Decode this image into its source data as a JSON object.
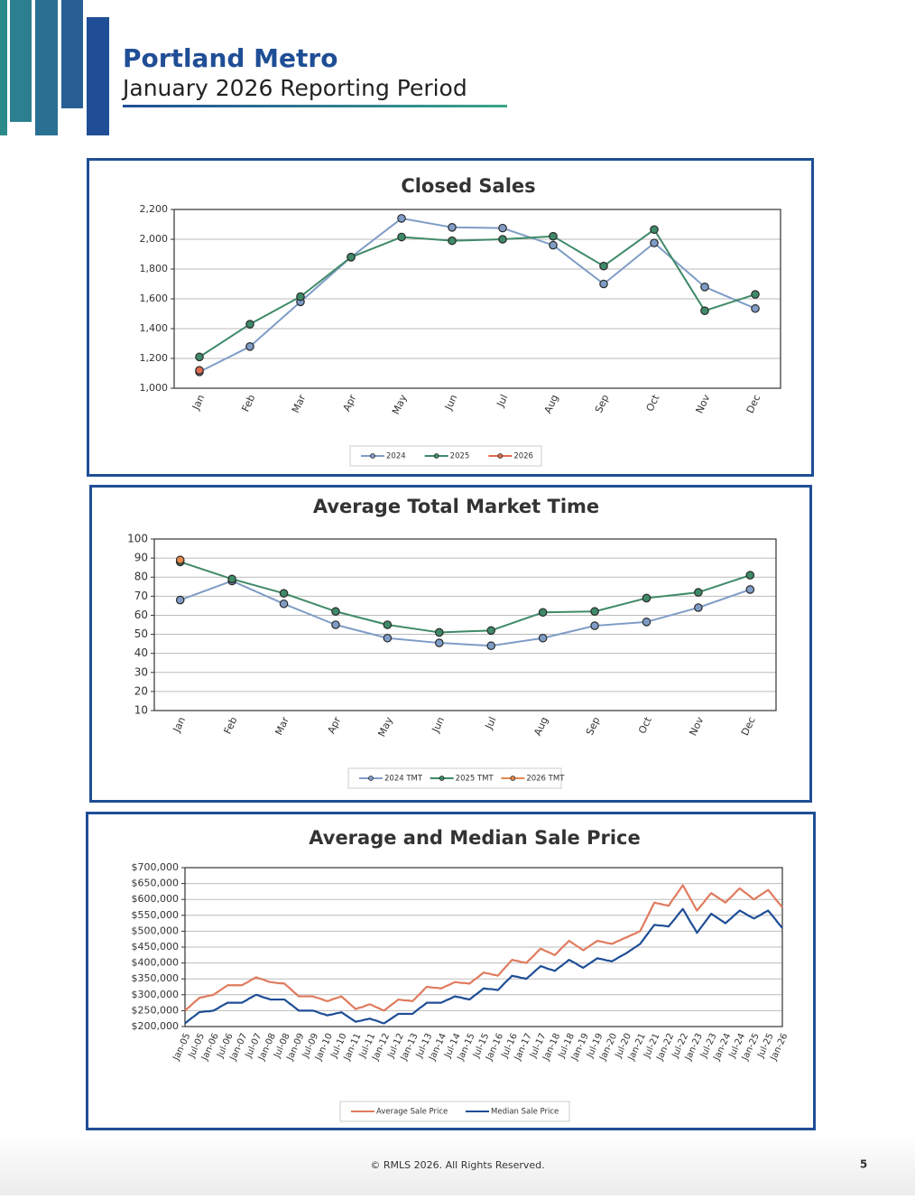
{
  "header": {
    "title": "Portland Metro",
    "subtitle": "January 2026 Reporting Period"
  },
  "footer": {
    "copyright": "© RMLS 2026. All Rights Reserved.",
    "page": "5"
  },
  "chart_data": [
    {
      "type": "line",
      "title": "Closed Sales",
      "markers": true,
      "grid": true,
      "legend": "bottom",
      "categories": [
        "Jan",
        "Feb",
        "Mar",
        "Apr",
        "May",
        "Jun",
        "Jul",
        "Aug",
        "Sep",
        "Oct",
        "Nov",
        "Dec"
      ],
      "series": [
        {
          "name": "2024",
          "color": "#7f9cc6",
          "values": [
            1110,
            1280,
            1580,
            1880,
            2140,
            2080,
            2075,
            1960,
            1700,
            1975,
            1680,
            1535
          ]
        },
        {
          "name": "2025",
          "color": "#3f8a68",
          "values": [
            1210,
            1430,
            1615,
            1880,
            2015,
            1990,
            2000,
            2020,
            1820,
            2065,
            1520,
            1630
          ]
        },
        {
          "name": "2026",
          "color": "#e06b4f",
          "values": [
            1120,
            null,
            null,
            null,
            null,
            null,
            null,
            null,
            null,
            null,
            null,
            null
          ]
        }
      ],
      "ylim": [
        1000,
        2200
      ],
      "yticks": [
        {
          "value": 1000,
          "label": "1,000"
        },
        {
          "value": 1200,
          "label": "1,200"
        },
        {
          "value": 1400,
          "label": "1,400"
        },
        {
          "value": 1600,
          "label": "1,600"
        },
        {
          "value": 1800,
          "label": "1,800"
        },
        {
          "value": 2000,
          "label": "2,000"
        },
        {
          "value": 2200,
          "label": "2,200"
        }
      ]
    },
    {
      "type": "line",
      "title": "Average Total Market Time",
      "markers": true,
      "grid": true,
      "legend": "bottom",
      "categories": [
        "Jan",
        "Feb",
        "Mar",
        "Apr",
        "May",
        "Jun",
        "Jul",
        "Aug",
        "Sep",
        "Oct",
        "Nov",
        "Dec"
      ],
      "series": [
        {
          "name": "2024 TMT",
          "color": "#7f9cc6",
          "values": [
            68,
            78,
            66,
            55,
            48,
            45.5,
            44,
            48,
            54.5,
            56.5,
            64,
            73.5
          ]
        },
        {
          "name": "2025 TMT",
          "color": "#3f8a68",
          "values": [
            88,
            79,
            71.5,
            62,
            55,
            51,
            52,
            61.5,
            62,
            69,
            72,
            81
          ]
        },
        {
          "name": "2026 TMT",
          "color": "#e38a4c",
          "values": [
            89,
            null,
            null,
            null,
            null,
            null,
            null,
            null,
            null,
            null,
            null,
            null
          ]
        }
      ],
      "ylim": [
        10,
        100
      ],
      "yticks": [
        10,
        20,
        30,
        40,
        50,
        60,
        70,
        80,
        90,
        100
      ]
    },
    {
      "type": "line",
      "title": "Average and Median Sale Price",
      "markers": false,
      "grid": true,
      "legend": "bottom",
      "categories": [
        "Jan-05",
        null,
        null,
        null,
        null,
        null,
        "Jul-05",
        null,
        null,
        null,
        null,
        null,
        "Jan-06",
        null,
        null,
        null,
        null,
        null,
        "Jul-06",
        null,
        null,
        null,
        null,
        null,
        "Jan-07",
        null,
        null,
        null,
        null,
        null,
        "Jul-07",
        null,
        null,
        null,
        null,
        null,
        "Jan-08",
        null,
        null,
        null,
        null,
        null,
        "Jul-08",
        null,
        null,
        null,
        null,
        null,
        "Jan-09",
        null,
        null,
        null,
        null,
        null,
        "Jul-09",
        null,
        null,
        null,
        null,
        null,
        "Jan-10",
        null,
        null,
        null,
        null,
        null,
        "Jul-10",
        null,
        null,
        null,
        null,
        null,
        "Jan-11",
        null,
        null,
        null,
        null,
        null,
        "Jul-11",
        null,
        null,
        null,
        null,
        null,
        "Jan-12",
        null,
        null,
        null,
        null,
        null,
        "Jul-12",
        null,
        null,
        null,
        null,
        null,
        "Jan-13",
        null,
        null,
        null,
        null,
        null,
        "Jul-13",
        null,
        null,
        null,
        null,
        null,
        "Jan-14",
        null,
        null,
        null,
        null,
        null,
        "Jul-14",
        null,
        null,
        null,
        null,
        null,
        "Jan-15",
        null,
        null,
        null,
        null,
        null,
        "Jul-15",
        null,
        null,
        null,
        null,
        null,
        "Jan-16",
        null,
        null,
        null,
        null,
        null,
        "Jul-16",
        null,
        null,
        null,
        null,
        null,
        "Jan-17",
        null,
        null,
        null,
        null,
        null,
        "Jul-17",
        null,
        null,
        null,
        null,
        null,
        "Jan-18",
        null,
        null,
        null,
        null,
        null,
        "Jul-18",
        null,
        null,
        null,
        null,
        null,
        "Jan-19",
        null,
        null,
        null,
        null,
        null,
        "Jul-19",
        null,
        null,
        null,
        null,
        null,
        "Jan-20",
        null,
        null,
        null,
        null,
        null,
        "Jul-20",
        null,
        null,
        null,
        null,
        null,
        "Jan-21",
        null,
        null,
        null,
        null,
        null,
        "Jul-21",
        null,
        null,
        null,
        null,
        null,
        "Jan-22",
        null,
        null,
        null,
        null,
        null,
        "Jul-22",
        null,
        null,
        null,
        null,
        null,
        "Jan-23",
        null,
        null,
        null,
        null,
        null,
        "Jul-23",
        null,
        null,
        null,
        null,
        null,
        "Jan-24",
        null,
        null,
        null,
        null,
        null,
        "Jul-24",
        null,
        null,
        null,
        null,
        null,
        "Jan-25",
        null,
        null,
        null,
        null,
        null,
        "Jul-25",
        null,
        null,
        null,
        null,
        null,
        "Jan-26"
      ],
      "series": [
        {
          "name": "Average Sale Price",
          "color": "#e07b5f",
          "values": [
            250000,
            257000,
            263000,
            270000,
            277000,
            283000,
            290000,
            292000,
            293000,
            295000,
            297000,
            298000,
            300000,
            305000,
            310000,
            315000,
            320000,
            325000,
            330000,
            330000,
            330000,
            330000,
            330000,
            330000,
            330000,
            334000,
            338000,
            342000,
            347000,
            351000,
            355000,
            352000,
            350000,
            348000,
            345000,
            342000,
            340000,
            339000,
            338000,
            337000,
            336000,
            336000,
            335000,
            328000,
            322000,
            315000,
            308000,
            302000,
            295000,
            295000,
            295000,
            295000,
            295000,
            295000,
            295000,
            292000,
            290000,
            288000,
            285000,
            282000,
            280000,
            282000,
            285000,
            288000,
            290000,
            292000,
            295000,
            288000,
            282000,
            275000,
            268000,
            262000,
            255000,
            258000,
            260000,
            262000,
            265000,
            268000,
            270000,
            267000,
            263000,
            260000,
            257000,
            253000,
            250000,
            256000,
            262000,
            268000,
            273000,
            279000,
            285000,
            284000,
            283000,
            282000,
            282000,
            281000,
            280000,
            287000,
            295000,
            302000,
            310000,
            318000,
            325000,
            324000,
            323000,
            322000,
            322000,
            321000,
            320000,
            323000,
            327000,
            330000,
            333000,
            337000,
            340000,
            339000,
            338000,
            337000,
            337000,
            336000,
            335000,
            341000,
            347000,
            352000,
            358000,
            364000,
            370000,
            368000,
            367000,
            365000,
            363000,
            362000,
            360000,
            368000,
            377000,
            385000,
            393000,
            402000,
            410000,
            408000,
            407000,
            405000,
            403000,
            402000,
            400000,
            408000,
            415000,
            422000,
            430000,
            438000,
            445000,
            442000,
            438000,
            435000,
            432000,
            428000,
            425000,
            432000,
            440000,
            448000,
            455000,
            462000,
            470000,
            465000,
            460000,
            455000,
            450000,
            445000,
            440000,
            445000,
            450000,
            455000,
            460000,
            465000,
            470000,
            468000,
            467000,
            465000,
            463000,
            462000,
            460000,
            463000,
            467000,
            470000,
            473000,
            477000,
            480000,
            483000,
            487000,
            490000,
            493000,
            497000,
            500000,
            515000,
            530000,
            545000,
            560000,
            575000,
            590000,
            588000,
            587000,
            585000,
            583000,
            582000,
            580000,
            591000,
            602000,
            612000,
            623000,
            634000,
            645000,
            632000,
            618000,
            605000,
            592000,
            578000,
            565000,
            574000,
            583000,
            592000,
            602000,
            611000,
            620000,
            615000,
            610000,
            605000,
            600000,
            595000,
            590000,
            598000,
            605000,
            612000,
            620000,
            628000,
            635000,
            629000,
            623000,
            618000,
            612000,
            606000,
            600000,
            605000,
            610000,
            615000,
            620000,
            625000,
            630000,
            621000,
            612000,
            602000,
            593000,
            584000,
            575000
          ]
        },
        {
          "name": "Median Sale Price",
          "color": "#1f4e96",
          "values": [
            210000,
            216000,
            222000,
            228000,
            233000,
            239000,
            245000,
            246000,
            247000,
            248000,
            248000,
            249000,
            250000,
            254000,
            258000,
            263000,
            267000,
            271000,
            275000,
            275000,
            275000,
            275000,
            275000,
            275000,
            275000,
            279000,
            283000,
            288000,
            292000,
            296000,
            300000,
            298000,
            295000,
            292000,
            290000,
            288000,
            285000,
            285000,
            285000,
            285000,
            285000,
            285000,
            285000,
            279000,
            273000,
            268000,
            262000,
            256000,
            250000,
            250000,
            250000,
            250000,
            250000,
            250000,
            250000,
            248000,
            245000,
            242000,
            240000,
            238000,
            235000,
            237000,
            238000,
            240000,
            242000,
            243000,
            245000,
            240000,
            235000,
            230000,
            225000,
            220000,
            215000,
            217000,
            218000,
            220000,
            222000,
            223000,
            225000,
            222000,
            220000,
            218000,
            215000,
            212000,
            210000,
            215000,
            220000,
            225000,
            230000,
            235000,
            240000,
            240000,
            240000,
            240000,
            240000,
            240000,
            240000,
            246000,
            252000,
            258000,
            263000,
            269000,
            275000,
            275000,
            275000,
            275000,
            275000,
            275000,
            275000,
            278000,
            282000,
            285000,
            288000,
            292000,
            295000,
            293000,
            292000,
            290000,
            288000,
            287000,
            285000,
            291000,
            297000,
            302000,
            308000,
            314000,
            320000,
            319000,
            318000,
            318000,
            317000,
            316000,
            315000,
            322000,
            330000,
            338000,
            345000,
            352000,
            360000,
            358000,
            357000,
            355000,
            353000,
            352000,
            350000,
            357000,
            363000,
            370000,
            377000,
            383000,
            390000,
            388000,
            385000,
            382000,
            380000,
            378000,
            375000,
            381000,
            387000,
            392000,
            398000,
            404000,
            410000,
            406000,
            402000,
            398000,
            393000,
            389000,
            385000,
            390000,
            395000,
            400000,
            405000,
            410000,
            415000,
            413000,
            412000,
            410000,
            408000,
            407000,
            405000,
            409000,
            413000,
            418000,
            422000,
            426000,
            430000,
            435000,
            440000,
            445000,
            450000,
            455000,
            460000,
            470000,
            480000,
            490000,
            500000,
            510000,
            520000,
            519000,
            518000,
            518000,
            517000,
            516000,
            515000,
            524000,
            533000,
            542000,
            552000,
            561000,
            570000,
            558000,
            545000,
            532000,
            520000,
            508000,
            495000,
            505000,
            515000,
            525000,
            535000,
            545000,
            555000,
            550000,
            545000,
            540000,
            535000,
            530000,
            525000,
            532000,
            538000,
            545000,
            552000,
            558000,
            565000,
            561000,
            557000,
            552000,
            548000,
            544000,
            540000,
            544000,
            548000,
            552000,
            557000,
            561000,
            565000,
            556000,
            547000,
            538000,
            528000,
            519000,
            510000
          ]
        }
      ],
      "ylim": [
        200000,
        700000
      ],
      "yticks": [
        {
          "value": 200000,
          "label": "$200,000"
        },
        {
          "value": 250000,
          "label": "$250,000"
        },
        {
          "value": 300000,
          "label": "$300,000"
        },
        {
          "value": 350000,
          "label": "$350,000"
        },
        {
          "value": 400000,
          "label": "$400,000"
        },
        {
          "value": 450000,
          "label": "$450,000"
        },
        {
          "value": 500000,
          "label": "$500,000"
        },
        {
          "value": 550000,
          "label": "$550,000"
        },
        {
          "value": 600000,
          "label": "$600,000"
        },
        {
          "value": 650000,
          "label": "$650,000"
        },
        {
          "value": 700000,
          "label": "$700,000"
        }
      ]
    }
  ]
}
